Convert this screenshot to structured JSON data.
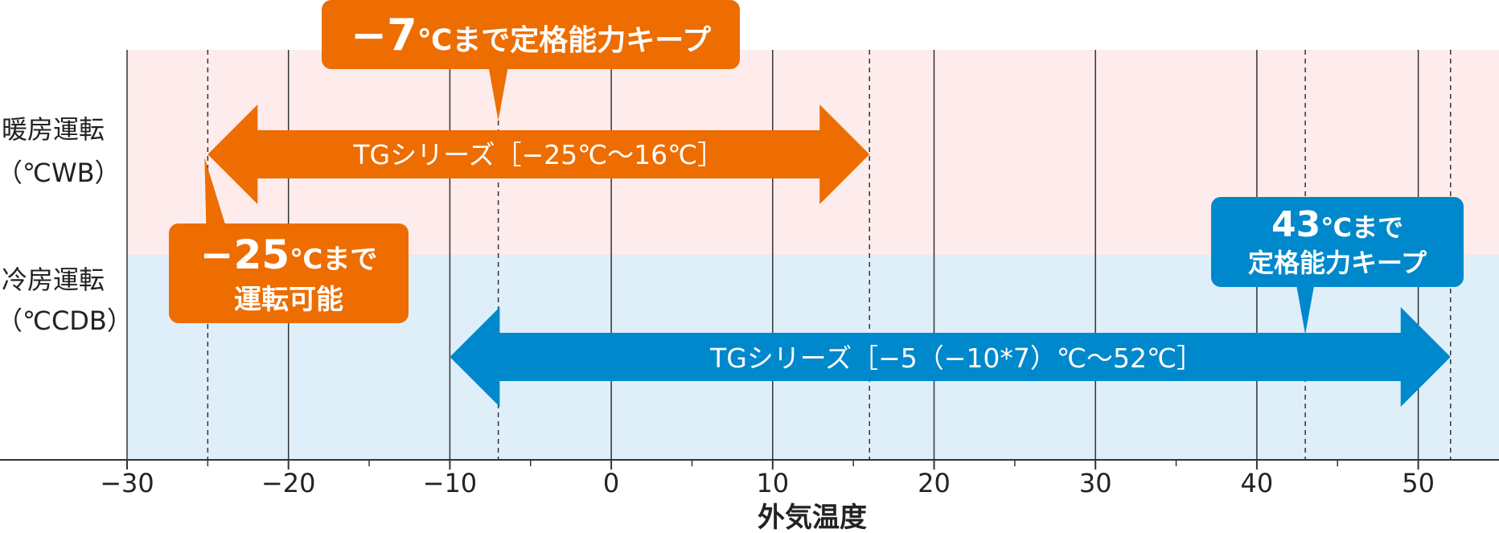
{
  "chart_data": {
    "type": "range",
    "xlabel": "外気温度",
    "xlim": [
      -35,
      55
    ],
    "ticks": [
      -30,
      -20,
      -10,
      0,
      10,
      20,
      30,
      40,
      50
    ],
    "tick_labels": [
      "−30",
      "−20",
      "−10",
      "0",
      "10",
      "20",
      "30",
      "40",
      "50"
    ],
    "bands": [
      {
        "label_line1": "暖房運転",
        "label_line2": "（℃WB）",
        "color": "#fdeceb"
      },
      {
        "label_line1": "冷房運転",
        "label_line2": "（℃CDB）",
        "color": "#dfeff9"
      }
    ],
    "series": [
      {
        "label": "TGシリーズ［−25℃〜16℃］",
        "min": -25,
        "max": 16,
        "color": "#ed6d00"
      },
      {
        "label": "TGシリーズ［−5（−10*7）℃〜52℃］",
        "min": -10,
        "max": 52,
        "color": "#0088cc"
      }
    ],
    "markers": [
      -25,
      -7,
      16,
      43,
      52
    ],
    "callouts": [
      {
        "big": "−7",
        "text": "℃まで定格能力キープ",
        "x": -7,
        "color": "#ed6d00"
      },
      {
        "big": "−25",
        "text": "℃まで",
        "line2": "運転可能",
        "x": -25,
        "color": "#ed6d00"
      },
      {
        "big": "43",
        "text": "℃まで",
        "line2": "定格能力キープ",
        "x": 43,
        "color": "#0088cc"
      }
    ]
  }
}
